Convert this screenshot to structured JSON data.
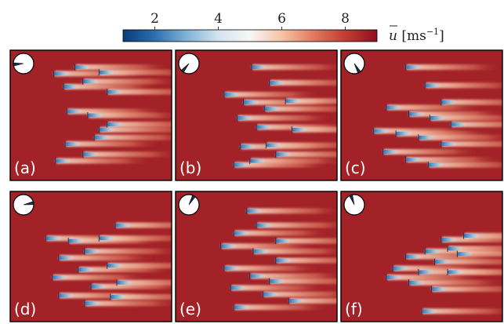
{
  "chart_data": {
    "type": "heatmap",
    "colorbar": {
      "label_italic": "u",
      "label_units": " [ms",
      "label_exp": "−1",
      "label_close": "]",
      "colormap": "RdBu_r",
      "range": [
        1.0,
        9.0
      ],
      "ticks": [
        "2",
        "4",
        "6",
        "8"
      ],
      "tick_values": [
        2,
        4,
        6,
        8
      ],
      "colors": [
        "#0a3b78",
        "#2c6fb0",
        "#7fb3d6",
        "#d3e4ef",
        "#f7f7f7",
        "#f6c3a5",
        "#e07a5f",
        "#c13d32",
        "#8e1020"
      ]
    },
    "background_value": 8.6,
    "panels": [
      {
        "label": "(a)",
        "wind_direction_deg": 265,
        "turbines": [
          [
            0.27,
            0.18
          ],
          [
            0.4,
            0.13
          ],
          [
            0.55,
            0.17
          ],
          [
            0.33,
            0.28
          ],
          [
            0.45,
            0.24
          ],
          [
            0.6,
            0.32
          ],
          [
            0.35,
            0.47
          ],
          [
            0.48,
            0.5
          ],
          [
            0.55,
            0.61
          ],
          [
            0.6,
            0.57
          ],
          [
            0.34,
            0.72
          ],
          [
            0.52,
            0.67
          ],
          [
            0.28,
            0.85
          ],
          [
            0.45,
            0.8
          ]
        ]
      },
      {
        "label": "(b)",
        "wind_direction_deg": 220,
        "turbines": [
          [
            0.47,
            0.13
          ],
          [
            0.58,
            0.25
          ],
          [
            0.3,
            0.34
          ],
          [
            0.42,
            0.4
          ],
          [
            0.55,
            0.45
          ],
          [
            0.68,
            0.39
          ],
          [
            0.38,
            0.52
          ],
          [
            0.5,
            0.59
          ],
          [
            0.72,
            0.61
          ],
          [
            0.4,
            0.74
          ],
          [
            0.56,
            0.73
          ],
          [
            0.46,
            0.85
          ],
          [
            0.62,
            0.8
          ],
          [
            0.36,
            0.88
          ]
        ]
      },
      {
        "label": "(c)",
        "wind_direction_deg": 150,
        "turbines": [
          [
            0.4,
            0.13
          ],
          [
            0.52,
            0.27
          ],
          [
            0.62,
            0.4
          ],
          [
            0.28,
            0.44
          ],
          [
            0.42,
            0.49
          ],
          [
            0.55,
            0.52
          ],
          [
            0.68,
            0.57
          ],
          [
            0.2,
            0.62
          ],
          [
            0.34,
            0.64
          ],
          [
            0.48,
            0.67
          ],
          [
            0.62,
            0.72
          ],
          [
            0.26,
            0.78
          ],
          [
            0.4,
            0.84
          ],
          [
            0.54,
            0.88
          ]
        ]
      },
      {
        "label": "(d)",
        "wind_direction_deg": 80,
        "turbines": [
          [
            0.22,
            0.36
          ],
          [
            0.36,
            0.38
          ],
          [
            0.55,
            0.36
          ],
          [
            0.65,
            0.26
          ],
          [
            0.46,
            0.46
          ],
          [
            0.3,
            0.51
          ],
          [
            0.42,
            0.6
          ],
          [
            0.6,
            0.57
          ],
          [
            0.26,
            0.66
          ],
          [
            0.5,
            0.73
          ],
          [
            0.66,
            0.7
          ],
          [
            0.3,
            0.8
          ],
          [
            0.46,
            0.86
          ],
          [
            0.62,
            0.81
          ]
        ]
      },
      {
        "label": "(e)",
        "wind_direction_deg": 30,
        "turbines": [
          [
            0.44,
            0.15
          ],
          [
            0.5,
            0.26
          ],
          [
            0.36,
            0.32
          ],
          [
            0.62,
            0.38
          ],
          [
            0.28,
            0.42
          ],
          [
            0.48,
            0.46
          ],
          [
            0.62,
            0.53
          ],
          [
            0.3,
            0.59
          ],
          [
            0.46,
            0.65
          ],
          [
            0.58,
            0.69
          ],
          [
            0.34,
            0.74
          ],
          [
            0.54,
            0.79
          ],
          [
            0.36,
            0.89
          ],
          [
            0.7,
            0.84
          ]
        ]
      },
      {
        "label": "(f)",
        "wind_direction_deg": 340,
        "turbines": [
          [
            0.62,
            0.37
          ],
          [
            0.76,
            0.34
          ],
          [
            0.66,
            0.44
          ],
          [
            0.52,
            0.46
          ],
          [
            0.72,
            0.48
          ],
          [
            0.4,
            0.5
          ],
          [
            0.58,
            0.54
          ],
          [
            0.32,
            0.59
          ],
          [
            0.48,
            0.62
          ],
          [
            0.66,
            0.62
          ],
          [
            0.28,
            0.66
          ],
          [
            0.42,
            0.7
          ],
          [
            0.56,
            0.75
          ],
          [
            0.5,
            0.92
          ]
        ]
      }
    ]
  }
}
